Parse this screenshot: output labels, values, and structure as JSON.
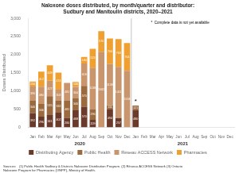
{
  "chart_data": {
    "type": "bar",
    "title": "Naloxone doses distributed, by month/quarter and distributor:\nSudbury and Manitoulin districts, 2020–2021",
    "ylabel": "Doses Distributed",
    "xlabel": [
      "2020",
      "2021"
    ],
    "categories": [
      "Jan",
      "Feb",
      "Mar",
      "Apr",
      "May",
      "Jun",
      "Jul",
      "Aug",
      "Sep",
      "Oct",
      "Nov",
      "Dec",
      "Jan",
      "Feb",
      "Mar",
      "Apr",
      "May",
      "Jun",
      "Jul",
      "Aug",
      "Sep",
      "Oct",
      "Nov",
      "Dec"
    ],
    "series": [
      {
        "name": "Distributing Agency",
        "color": "#6B3A2A",
        "values": [
          392,
          296,
          341,
          402,
          260,
          468,
          570,
          209,
          0,
          494,
          257,
          0,
          480,
          0,
          0,
          0,
          0,
          0,
          0,
          0,
          0,
          0,
          0,
          0
        ]
      },
      {
        "name": "Public Health",
        "color": "#9B6A3E",
        "values": [
          340,
          346,
          515,
          332,
          481,
          340,
          570,
          296,
          0,
          111,
          0,
          0,
          121,
          0,
          0,
          0,
          0,
          0,
          0,
          0,
          0,
          0,
          0,
          0
        ]
      },
      {
        "name": "Réseau ACCESS Network",
        "color": "#C8956C",
        "values": [
          396,
          480,
          427,
          302,
          481,
          304,
          618,
          1138,
          2082,
          1138,
          1411,
          1558,
          0,
          0,
          0,
          0,
          0,
          0,
          0,
          0,
          0,
          0,
          0,
          0
        ]
      },
      {
        "name": "Pharmacies",
        "color": "#F0A030",
        "values": [
          134,
          412,
          428,
          474,
          0,
          140,
          180,
          523,
          570,
          704,
          763,
          764,
          0,
          0,
          0,
          0,
          0,
          0,
          0,
          0,
          0,
          0,
          0,
          0
        ]
      }
    ],
    "stacked": true,
    "data_labels": true,
    "grid": false,
    "legend": "bottom",
    "ylim": [
      0,
      3000
    ],
    "yticks": [
      0,
      500,
      {
        "value": 1000,
        "label": "1,000"
      },
      {
        "value": 1500,
        "label": "1,500"
      },
      {
        "value": 2000,
        "label": "2,000"
      },
      {
        "value": 2500,
        "label": "2,500"
      },
      {
        "value": 3000,
        "label": "3,000"
      }
    ],
    "annotations": [
      {
        "text": "*",
        "category": 12
      },
      {
        "text": "*  Complete data is not yet available"
      }
    ],
    "source": "Sources:   (1) Public Health Sudbury & Districts Naloxone Distribution Program. (2) Réseau ACCESS Network (3) Ontario\nNaloxone Program for Pharmacies (ONPP), Ministry of Health."
  }
}
